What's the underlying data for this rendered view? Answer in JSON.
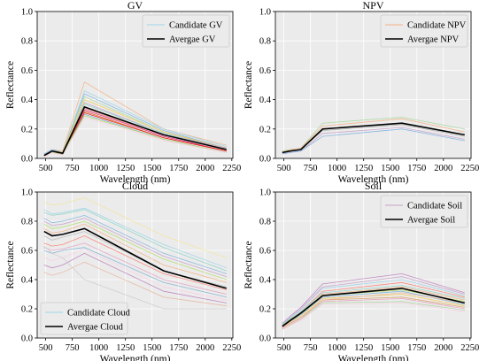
{
  "figure": {
    "background": "#ffffff",
    "axes_background": "#ebebeb",
    "mean_line_color": "#000000"
  },
  "chart_data": [
    {
      "type": "line",
      "title": "GV",
      "xlabel": "Wavelength (nm)",
      "ylabel": "Reflectance",
      "xlim": [
        420,
        2260
      ],
      "ylim": [
        0.0,
        1.0
      ],
      "xticks": [
        500,
        750,
        1000,
        1250,
        1500,
        1750,
        2000,
        2250
      ],
      "yticks": [
        0.0,
        0.2,
        0.4,
        0.6,
        0.8,
        1.0
      ],
      "grid": true,
      "legend": "top-right",
      "x": [
        485,
        560,
        660,
        865,
        1610,
        2200
      ],
      "candidate_label": "Candidate GV",
      "mean_label": "Avergae GV",
      "mean": [
        0.02,
        0.05,
        0.035,
        0.35,
        0.16,
        0.06
      ],
      "candidates": [
        {
          "color": "#f4b183",
          "values": [
            0.03,
            0.06,
            0.05,
            0.52,
            0.2,
            0.09
          ]
        },
        {
          "color": "#9dd4e8",
          "values": [
            0.03,
            0.06,
            0.04,
            0.46,
            0.2,
            0.08
          ]
        },
        {
          "color": "#7fb3e0",
          "values": [
            0.03,
            0.06,
            0.04,
            0.44,
            0.19,
            0.07
          ]
        },
        {
          "color": "#a6d9a0",
          "values": [
            0.02,
            0.05,
            0.04,
            0.42,
            0.18,
            0.07
          ]
        },
        {
          "color": "#f2c94c",
          "values": [
            0.02,
            0.05,
            0.04,
            0.4,
            0.18,
            0.07
          ]
        },
        {
          "color": "#c8a2c8",
          "values": [
            0.02,
            0.05,
            0.03,
            0.38,
            0.17,
            0.07
          ]
        },
        {
          "color": "#8dd3c7",
          "values": [
            0.02,
            0.05,
            0.03,
            0.37,
            0.17,
            0.06
          ]
        },
        {
          "color": "#bc80bd",
          "values": [
            0.02,
            0.05,
            0.03,
            0.35,
            0.16,
            0.06
          ]
        },
        {
          "color": "#fb8072",
          "values": [
            0.02,
            0.04,
            0.03,
            0.34,
            0.15,
            0.05
          ]
        },
        {
          "color": "#e7298a",
          "values": [
            0.02,
            0.04,
            0.03,
            0.33,
            0.15,
            0.05
          ]
        },
        {
          "color": "#d95f02",
          "values": [
            0.02,
            0.04,
            0.03,
            0.32,
            0.14,
            0.05
          ]
        },
        {
          "color": "#e31a1c",
          "values": [
            0.02,
            0.04,
            0.03,
            0.31,
            0.14,
            0.05
          ]
        },
        {
          "color": "#80b1d3",
          "values": [
            0.02,
            0.04,
            0.03,
            0.3,
            0.13,
            0.04
          ]
        },
        {
          "color": "#b3de69",
          "values": [
            0.01,
            0.04,
            0.03,
            0.29,
            0.13,
            0.04
          ]
        },
        {
          "color": "#fccde5",
          "values": [
            0.01,
            0.04,
            0.02,
            0.28,
            0.12,
            0.04
          ]
        }
      ]
    },
    {
      "type": "line",
      "title": "NPV",
      "xlabel": "Wavelength (nm)",
      "ylabel": "Reflectance",
      "xlim": [
        420,
        2260
      ],
      "ylim": [
        0.0,
        1.0
      ],
      "xticks": [
        500,
        750,
        1000,
        1250,
        1500,
        1750,
        2000,
        2250
      ],
      "yticks": [
        0.0,
        0.2,
        0.4,
        0.6,
        0.8,
        1.0
      ],
      "grid": true,
      "legend": "top-right",
      "x": [
        485,
        560,
        660,
        865,
        1610,
        2200
      ],
      "candidate_label": "Candidate NPV",
      "mean_label": "Avergae NPV",
      "mean": [
        0.04,
        0.05,
        0.06,
        0.2,
        0.24,
        0.16
      ],
      "candidates": [
        {
          "color": "#a6d9a0",
          "values": [
            0.05,
            0.06,
            0.07,
            0.24,
            0.28,
            0.2
          ]
        },
        {
          "color": "#f4b183",
          "values": [
            0.04,
            0.06,
            0.07,
            0.22,
            0.27,
            0.18
          ]
        },
        {
          "color": "#9dd4e8",
          "values": [
            0.04,
            0.05,
            0.06,
            0.2,
            0.24,
            0.16
          ]
        },
        {
          "color": "#aaaaaa",
          "values": [
            0.03,
            0.05,
            0.06,
            0.19,
            0.23,
            0.15
          ]
        },
        {
          "color": "#c8a2c8",
          "values": [
            0.03,
            0.04,
            0.05,
            0.17,
            0.21,
            0.13
          ]
        },
        {
          "color": "#7fb3e0",
          "values": [
            0.03,
            0.04,
            0.05,
            0.15,
            0.2,
            0.12
          ]
        }
      ]
    },
    {
      "type": "line",
      "title": "Cloud",
      "xlabel": "Wavelength (nm)",
      "ylabel": "Reflectance",
      "xlim": [
        420,
        2260
      ],
      "ylim": [
        0.0,
        1.0
      ],
      "xticks": [
        500,
        750,
        1000,
        1250,
        1500,
        1750,
        2000,
        2250
      ],
      "yticks": [
        0.0,
        0.2,
        0.4,
        0.6,
        0.8,
        1.0
      ],
      "grid": true,
      "legend": "bottom-left",
      "x": [
        485,
        560,
        660,
        865,
        1610,
        2200
      ],
      "candidate_label": "Candidate Cloud",
      "mean_label": "Avergae Cloud",
      "mean": [
        0.73,
        0.7,
        0.71,
        0.75,
        0.46,
        0.34
      ],
      "candidates": [
        {
          "color": "#f2e6a0",
          "values": [
            0.93,
            0.91,
            0.92,
            0.96,
            0.7,
            0.55
          ]
        },
        {
          "color": "#9dd4e8",
          "values": [
            0.88,
            0.85,
            0.86,
            0.89,
            0.64,
            0.48
          ]
        },
        {
          "color": "#8dd3c7",
          "values": [
            0.86,
            0.84,
            0.85,
            0.88,
            0.62,
            0.46
          ]
        },
        {
          "color": "#7fb3e0",
          "values": [
            0.82,
            0.79,
            0.8,
            0.84,
            0.58,
            0.44
          ]
        },
        {
          "color": "#c8a2c8",
          "values": [
            0.8,
            0.77,
            0.78,
            0.82,
            0.56,
            0.42
          ]
        },
        {
          "color": "#b3de69",
          "values": [
            0.78,
            0.75,
            0.76,
            0.8,
            0.54,
            0.4
          ]
        },
        {
          "color": "#f4b183",
          "values": [
            0.75,
            0.72,
            0.73,
            0.78,
            0.5,
            0.38
          ]
        },
        {
          "color": "#bbbbbb",
          "values": [
            0.7,
            0.67,
            0.69,
            0.73,
            0.46,
            0.35
          ]
        },
        {
          "color": "#fb8072",
          "values": [
            0.65,
            0.63,
            0.64,
            0.7,
            0.44,
            0.33
          ]
        },
        {
          "color": "#e7a0c0",
          "values": [
            0.62,
            0.6,
            0.61,
            0.65,
            0.4,
            0.3
          ]
        },
        {
          "color": "#80b1d3",
          "values": [
            0.6,
            0.58,
            0.6,
            0.62,
            0.38,
            0.28
          ]
        },
        {
          "color": "#fccde5",
          "values": [
            0.55,
            0.53,
            0.55,
            0.61,
            0.35,
            0.26
          ]
        },
        {
          "color": "#bc80bd",
          "values": [
            0.5,
            0.48,
            0.5,
            0.58,
            0.32,
            0.24
          ]
        },
        {
          "color": "#e6b8a2",
          "values": [
            0.45,
            0.43,
            0.45,
            0.52,
            0.28,
            0.22
          ]
        },
        {
          "color": "#cccccc",
          "values": [
            0.63,
            0.58,
            0.55,
            0.4,
            0.2,
            0.2
          ]
        }
      ]
    },
    {
      "type": "line",
      "title": "Soil",
      "xlabel": "Wavelength (nm)",
      "ylabel": "Reflectance",
      "xlim": [
        420,
        2260
      ],
      "ylim": [
        0.0,
        1.0
      ],
      "xticks": [
        500,
        750,
        1000,
        1250,
        1500,
        1750,
        2000,
        2250
      ],
      "yticks": [
        0.0,
        0.2,
        0.4,
        0.6,
        0.8,
        1.0
      ],
      "grid": true,
      "legend": "top-right",
      "x": [
        485,
        560,
        660,
        865,
        1610,
        2200
      ],
      "candidate_label": "Candidate Soil",
      "mean_label": "Avergae Soil",
      "mean": [
        0.08,
        0.12,
        0.17,
        0.29,
        0.34,
        0.24
      ],
      "candidates": [
        {
          "color": "#bc80bd",
          "values": [
            0.1,
            0.15,
            0.21,
            0.37,
            0.44,
            0.31
          ]
        },
        {
          "color": "#c8a2c8",
          "values": [
            0.1,
            0.14,
            0.2,
            0.35,
            0.42,
            0.3
          ]
        },
        {
          "color": "#9dd4e8",
          "values": [
            0.09,
            0.14,
            0.19,
            0.34,
            0.4,
            0.29
          ]
        },
        {
          "color": "#fb8072",
          "values": [
            0.09,
            0.13,
            0.18,
            0.32,
            0.38,
            0.28
          ]
        },
        {
          "color": "#8dd3c7",
          "values": [
            0.09,
            0.13,
            0.18,
            0.31,
            0.36,
            0.27
          ]
        },
        {
          "color": "#f4b183",
          "values": [
            0.08,
            0.12,
            0.17,
            0.3,
            0.35,
            0.26
          ]
        },
        {
          "color": "#b3de69",
          "values": [
            0.08,
            0.12,
            0.16,
            0.29,
            0.33,
            0.25
          ]
        },
        {
          "color": "#80b1d3",
          "values": [
            0.08,
            0.11,
            0.16,
            0.28,
            0.32,
            0.23
          ]
        },
        {
          "color": "#f2c94c",
          "values": [
            0.07,
            0.11,
            0.15,
            0.27,
            0.3,
            0.22
          ]
        },
        {
          "color": "#d9a066",
          "values": [
            0.07,
            0.1,
            0.14,
            0.26,
            0.28,
            0.21
          ]
        },
        {
          "color": "#e7a0c0",
          "values": [
            0.07,
            0.1,
            0.14,
            0.25,
            0.27,
            0.2
          ]
        },
        {
          "color": "#a6d9a0",
          "values": [
            0.06,
            0.09,
            0.13,
            0.24,
            0.25,
            0.19
          ]
        },
        {
          "color": "#fccde5",
          "values": [
            0.06,
            0.09,
            0.12,
            0.23,
            0.24,
            0.18
          ]
        },
        {
          "color": "#e6b8a2",
          "values": [
            0.06,
            0.09,
            0.13,
            0.26,
            0.31,
            0.24
          ]
        }
      ]
    }
  ]
}
